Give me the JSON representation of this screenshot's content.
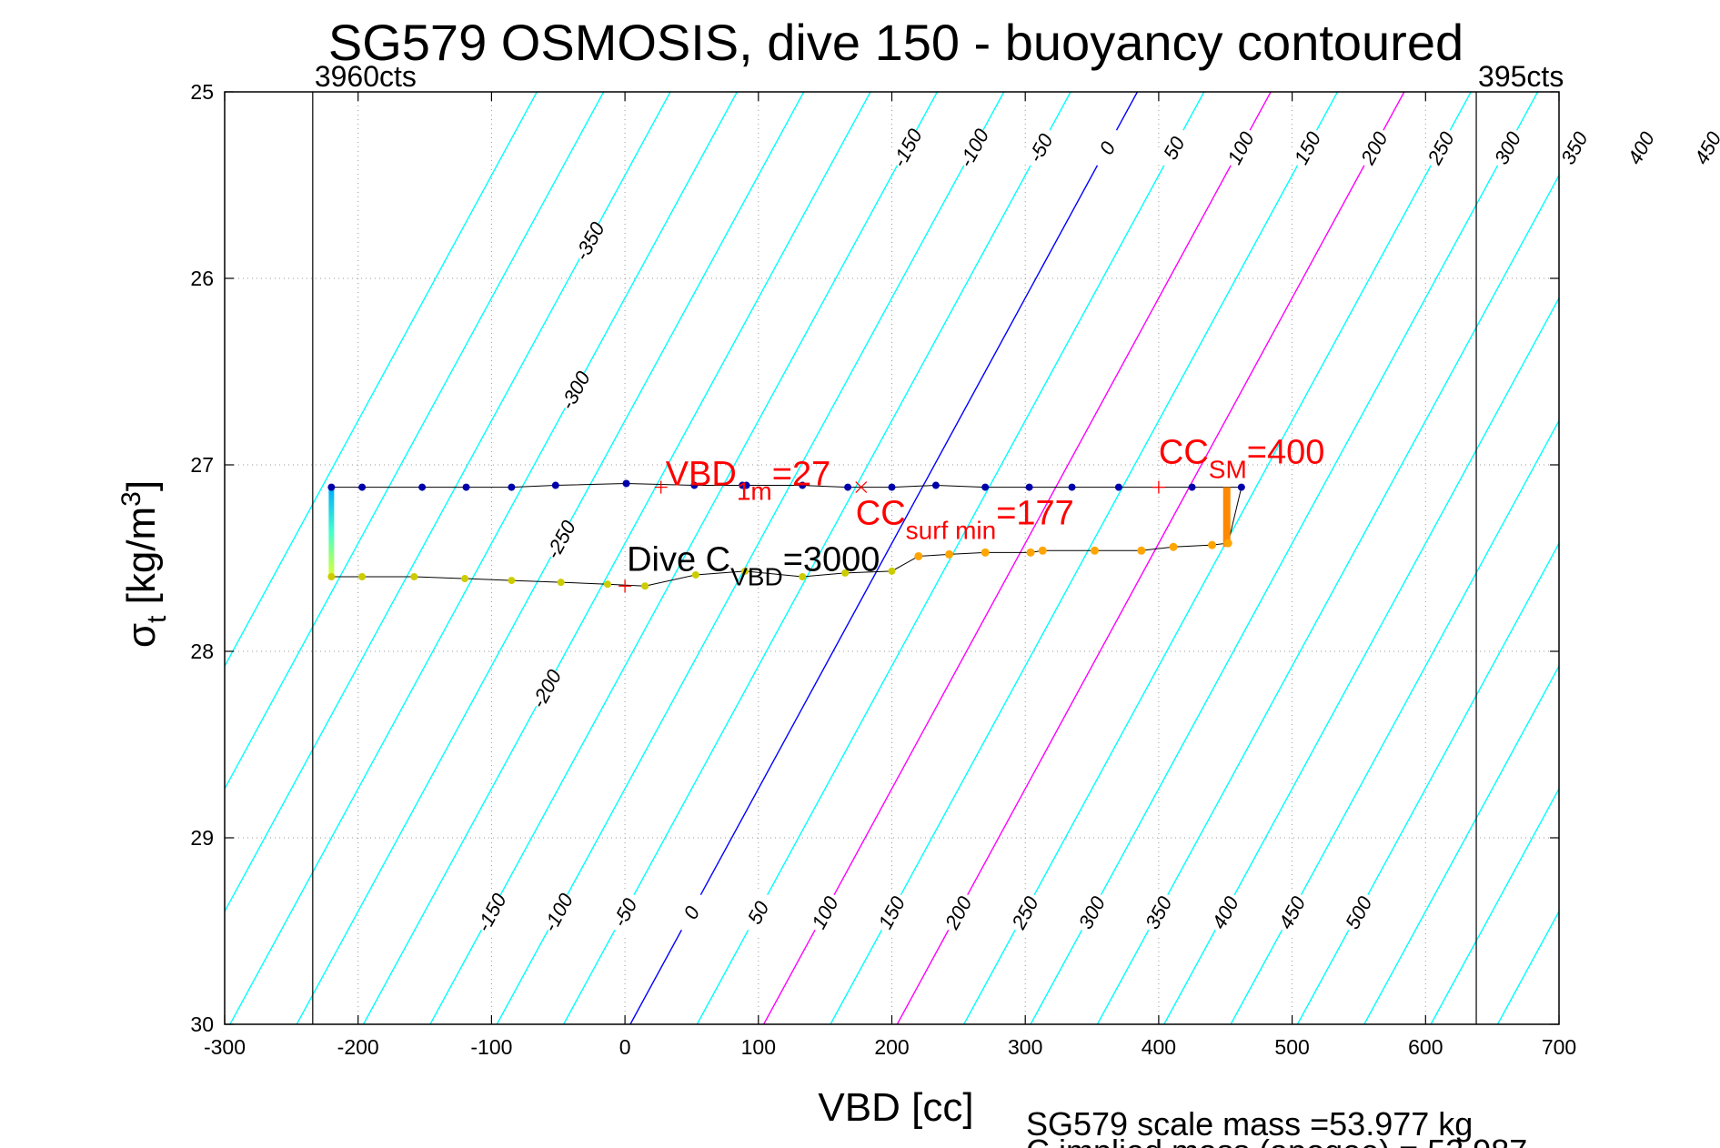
{
  "chart_data": {
    "type": "scatter",
    "title": "SG579 OSMOSIS, dive 150 - buoyancy contoured",
    "xlabel": "VBD [cc]",
    "ylabel": "σt [kg/m3]",
    "xlim": [
      -300,
      700
    ],
    "ylim": [
      25,
      30
    ],
    "y_reversed": true,
    "x_ticks": [
      "-300",
      "-200",
      "-100",
      "0",
      "100",
      "200",
      "300",
      "400",
      "500",
      "600",
      "700"
    ],
    "y_ticks": [
      "25",
      "26",
      "27",
      "28",
      "29",
      "30"
    ],
    "grid": true,
    "count_limits": [
      {
        "label": "3960cts",
        "x": -234
      },
      {
        "label": "395cts",
        "x": 638
      }
    ],
    "buoyancy_contours": {
      "color_default": "#00ffff",
      "color_zero": "#0000ff",
      "color_special": "#ff00ff",
      "special_values": [
        100,
        200
      ],
      "values": [
        -450,
        -400,
        -350,
        -300,
        -250,
        -200,
        -150,
        -100,
        -50,
        0,
        50,
        100,
        150,
        200,
        250,
        300,
        350,
        400,
        450,
        500,
        550,
        600,
        650,
        700,
        750,
        800
      ],
      "x_at_sigma_30": [
        -446,
        -396,
        -346,
        -296,
        -246,
        -196,
        -146,
        -96,
        -46,
        4,
        54,
        104,
        154,
        204,
        254,
        304,
        354,
        404,
        454,
        504,
        554,
        604,
        654,
        704,
        754,
        804
      ],
      "x_at_sigma_25": [
        -66,
        -16,
        34,
        84,
        134,
        184,
        234,
        284,
        334,
        384,
        434,
        484,
        534,
        584,
        634,
        684,
        734,
        784,
        834,
        884,
        934,
        984,
        1034,
        1084,
        1134,
        1184
      ],
      "labels_top": [
        "-150",
        "-100",
        "-50",
        "0",
        "50",
        "100",
        "150",
        "200",
        "250",
        "300",
        "350",
        "400",
        "450",
        "500"
      ],
      "labels_left": [
        "-350",
        "-300",
        "-250",
        "-200"
      ],
      "labels_bottom": [
        "-150",
        "-100",
        "-50",
        "0",
        "50",
        "100",
        "150",
        "200",
        "250",
        "300",
        "350",
        "400",
        "450",
        "500"
      ]
    },
    "series": [
      {
        "name": "",
        "color": "#0000aa",
        "x": [
          -220,
          -197,
          -152,
          -119,
          -85,
          -52,
          1,
          52,
          88,
          91,
          133,
          167,
          200,
          233,
          270,
          303,
          335,
          370,
          425,
          462
        ],
        "y": [
          27.12,
          27.12,
          27.12,
          27.12,
          27.12,
          27.11,
          27.1,
          27.11,
          27.11,
          27.11,
          27.11,
          27.12,
          27.12,
          27.11,
          27.12,
          27.12,
          27.12,
          27.12,
          27.12,
          27.12
        ]
      },
      {
        "name": "",
        "color": "#ffa500",
        "x": [
          220,
          243,
          270,
          304,
          313,
          352,
          387,
          411,
          440,
          452
        ],
        "y": [
          27.49,
          27.48,
          27.47,
          27.47,
          27.46,
          27.46,
          27.46,
          27.44,
          27.43,
          27.42
        ]
      },
      {
        "name": "",
        "color": "#cccc00",
        "x": [
          -220,
          -197,
          -158,
          -120,
          -85,
          -48,
          -13,
          15,
          53,
          90,
          133,
          165,
          200
        ],
        "y": [
          27.6,
          27.6,
          27.6,
          27.61,
          27.62,
          27.63,
          27.64,
          27.65,
          27.59,
          27.57,
          27.6,
          27.58,
          27.57
        ]
      }
    ],
    "annotations": {
      "vbd_1m": {
        "text": "VBD",
        "sub": "1m",
        "tail": "=27",
        "x": 27,
        "y": 27.12
      },
      "cc_surf_min": {
        "text": "CC",
        "sub": "surf min",
        "tail": "=177",
        "x": 177,
        "y": 27.12
      },
      "cc_sm": {
        "text": "CC",
        "sub": "SM",
        "tail": "=400",
        "x": 400,
        "y": 27.12
      },
      "dive_c_vbd": {
        "text": "Dive C",
        "sub": "VBD",
        "tail": "=3000",
        "x": 0,
        "y": 27.65
      }
    },
    "footer": {
      "line1": "SG579 scale mass =53.977 kg",
      "line2": "C      implied mass (apogee) = 53.987"
    }
  }
}
